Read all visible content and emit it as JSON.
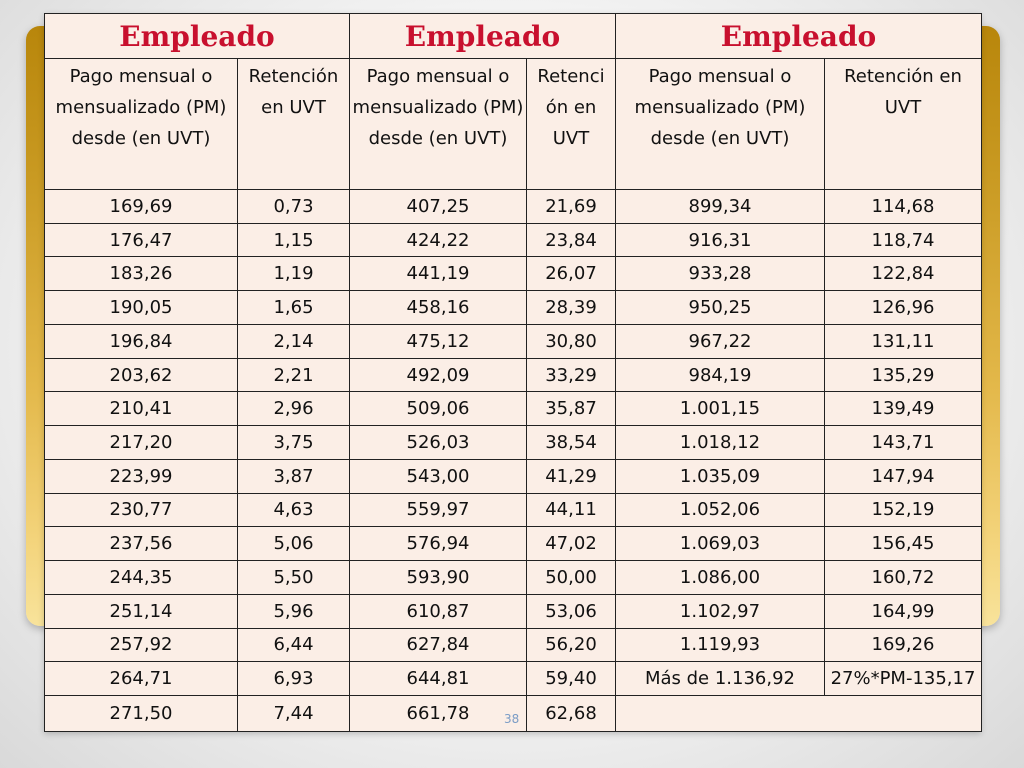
{
  "header": {
    "titles": [
      "Empleado",
      "Empleado",
      "Empleado"
    ],
    "subheaders": [
      "Pago mensual o mensualizado (PM) desde (en UVT)",
      "Retención en UVT",
      "Pago mensual o mensualizado (PM) desde (en UVT)",
      "Retenci ón en UVT",
      "Pago mensual o mensualizado (PM) desde (en UVT)",
      "Retención en UVT"
    ]
  },
  "rows": [
    [
      "169,69",
      "0,73",
      "407,25",
      "21,69",
      "899,34",
      "114,68"
    ],
    [
      "176,47",
      "1,15",
      "424,22",
      "23,84",
      "916,31",
      "118,74"
    ],
    [
      "183,26",
      "1,19",
      "441,19",
      "26,07",
      "933,28",
      "122,84"
    ],
    [
      "190,05",
      "1,65",
      "458,16",
      "28,39",
      "950,25",
      "126,96"
    ],
    [
      "196,84",
      "2,14",
      "475,12",
      "30,80",
      "967,22",
      "131,11"
    ],
    [
      "203,62",
      "2,21",
      "492,09",
      "33,29",
      "984,19",
      "135,29"
    ],
    [
      "210,41",
      "2,96",
      "509,06",
      "35,87",
      "1.001,15",
      "139,49"
    ],
    [
      "217,20",
      "3,75",
      "526,03",
      "38,54",
      "1.018,12",
      "143,71"
    ],
    [
      "223,99",
      "3,87",
      "543,00",
      "41,29",
      "1.035,09",
      "147,94"
    ],
    [
      "230,77",
      "4,63",
      "559,97",
      "44,11",
      "1.052,06",
      "152,19"
    ],
    [
      "237,56",
      "5,06",
      "576,94",
      "47,02",
      "1.069,03",
      "156,45"
    ],
    [
      "244,35",
      "5,50",
      "593,90",
      "50,00",
      "1.086,00",
      "160,72"
    ],
    [
      "251,14",
      "5,96",
      "610,87",
      "53,06",
      "1.102,97",
      "164,99"
    ],
    [
      "257,92",
      "6,44",
      "627,84",
      "56,20",
      "1.119,93",
      "169,26"
    ],
    [
      "264,71",
      "6,93",
      "644,81",
      "59,40",
      "Más de 1.136,92",
      "27%*PM-135,17"
    ]
  ],
  "last_row": [
    "271,50",
    "7,44",
    "661,78",
    "62,68"
  ],
  "slide_number": "38"
}
